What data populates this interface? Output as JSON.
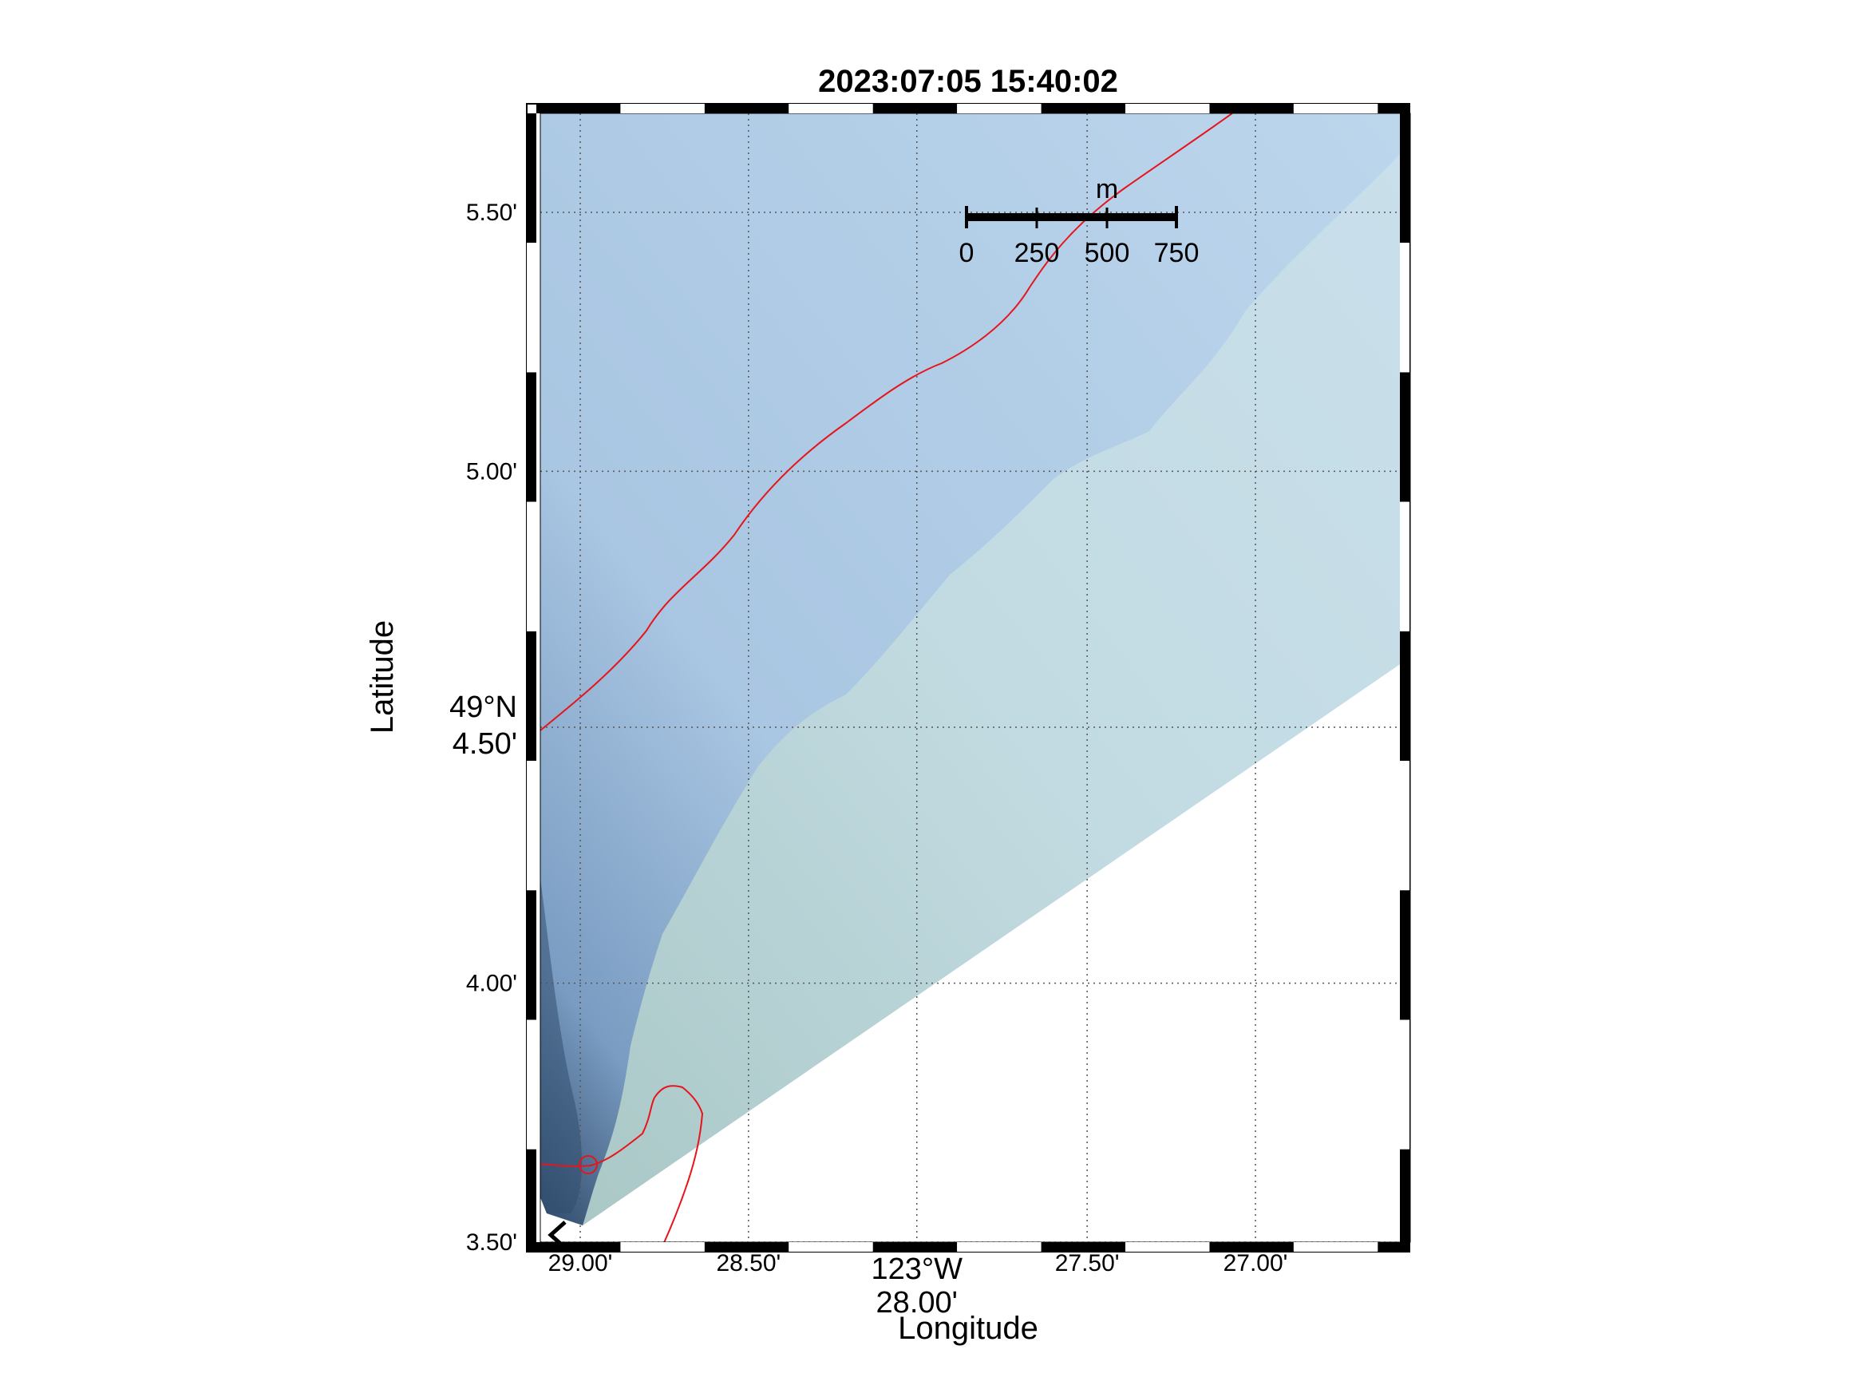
{
  "title": "2023:07:05 15:40:02",
  "axes": {
    "xlabel": "Longitude",
    "ylabel": "Latitude"
  },
  "lon_ticks": [
    {
      "value": -123.4833,
      "lines": [
        "29.00'"
      ]
    },
    {
      "value": -123.475,
      "lines": [
        "28.50'"
      ]
    },
    {
      "value": -123.4667,
      "lines": [
        "123°W",
        "28.00'"
      ]
    },
    {
      "value": -123.4583,
      "lines": [
        "27.50'"
      ]
    },
    {
      "value": -123.45,
      "lines": [
        "27.00'"
      ]
    }
  ],
  "lat_ticks": [
    {
      "value": 49.0583,
      "lines": [
        "3.50'"
      ]
    },
    {
      "value": 49.0667,
      "lines": [
        "4.00'"
      ]
    },
    {
      "value": 49.075,
      "lines": [
        "49°N",
        "4.50'"
      ]
    },
    {
      "value": 49.0833,
      "lines": [
        "5.00'"
      ]
    },
    {
      "value": 49.0917,
      "lines": [
        "5.50'"
      ]
    }
  ],
  "scale_bar": {
    "unit": "m",
    "labels": [
      "0",
      "250",
      "500",
      "750"
    ]
  },
  "colors": {
    "ship_track": "#e8141b",
    "deep_water": "#2f4a6a",
    "shallow_water": "#c8dfe3",
    "mid_water": "#a8c6e2",
    "frame": "#000000",
    "grid": "#555555"
  },
  "features": {
    "track_marker": "circle-marker",
    "start_marker": "arrow-icon"
  }
}
